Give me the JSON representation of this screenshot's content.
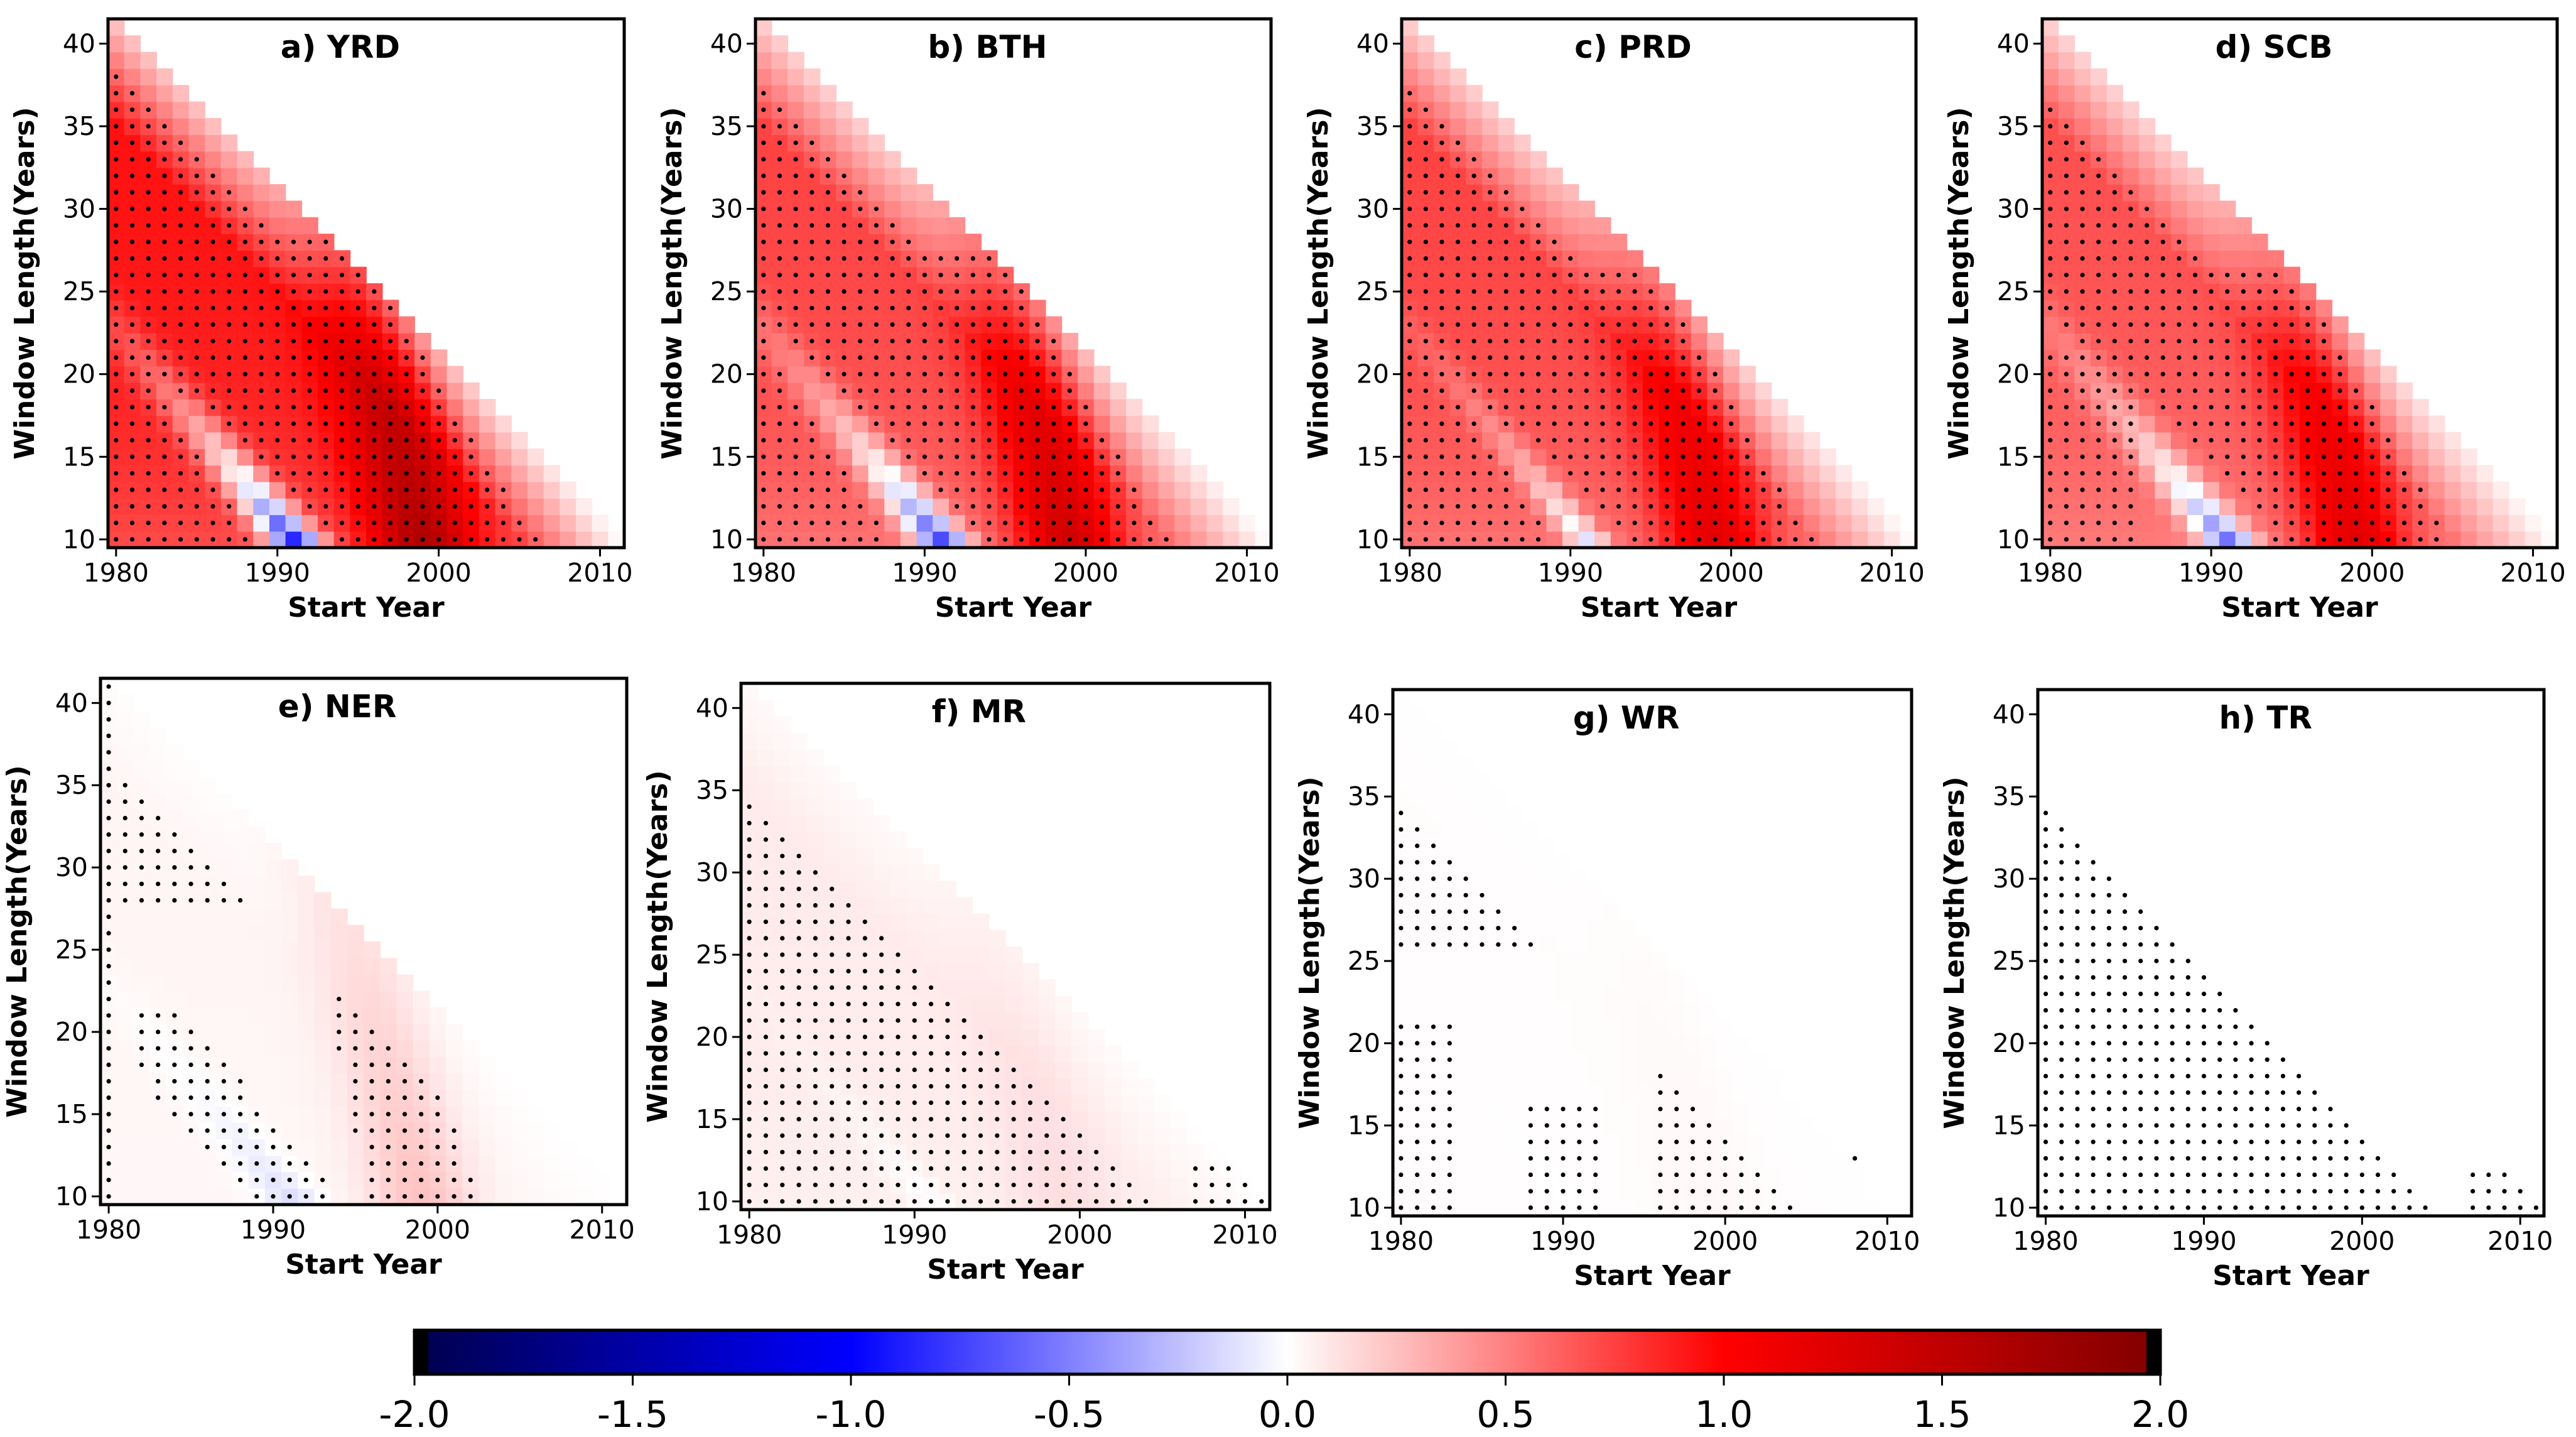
{
  "chart_data": {
    "type": "heatmap",
    "description_axes": {
      "xlabel": "Start Year",
      "ylabel": "Window Length(Years)",
      "x_range": [
        1980,
        2011
      ],
      "y_range": [
        10,
        41
      ],
      "x_ticks": [
        "1980",
        "1990",
        "2000",
        "2010"
      ],
      "y_ticks": [
        "10",
        "15",
        "20",
        "25",
        "30",
        "35",
        "40"
      ],
      "valid_region": "start_year + window_length <= 2021"
    },
    "panels": [
      {
        "id": "a",
        "title": "a) YRD",
        "peak": 1.85,
        "dip": -0.7,
        "dip_width": 1.6,
        "base": 0.95,
        "sig": "strong"
      },
      {
        "id": "b",
        "title": "b) BTH",
        "peak": 1.55,
        "dip": -0.6,
        "dip_width": 1.6,
        "base": 0.75,
        "sig": "strong"
      },
      {
        "id": "c",
        "title": "c) PRD",
        "peak": 1.4,
        "dip": 0.0,
        "dip_width": 1.2,
        "base": 0.75,
        "sig": "strong"
      },
      {
        "id": "d",
        "title": "d) SCB",
        "peak": 1.4,
        "dip": -0.45,
        "dip_width": 1.6,
        "base": 0.7,
        "sig": "partial"
      },
      {
        "id": "e",
        "title": "e) NER",
        "peak": 0.25,
        "dip": -0.12,
        "dip_width": 1.6,
        "base": 0.04,
        "sig": "moderate"
      },
      {
        "id": "f",
        "title": "f) MR",
        "peak": 0.15,
        "dip": 0.0,
        "dip_width": 1.2,
        "base": 0.08,
        "sig": "full"
      },
      {
        "id": "g",
        "title": "g) WR",
        "peak": 0.03,
        "dip": 0.0,
        "dip_width": 1.2,
        "base": 0.01,
        "sig": "sparse"
      },
      {
        "id": "h",
        "title": "h) TR",
        "peak": 0.0,
        "dip": 0.0,
        "dip_width": 1.2,
        "base": 0.0,
        "sig": "full"
      }
    ],
    "colorbar": {
      "colormap": "seismic",
      "vmin": -2.0,
      "vmax": 2.0,
      "ticks": [
        "-2.0",
        "-1.5",
        "-1.0",
        "-0.5",
        "0.0",
        "0.5",
        "1.0",
        "1.5",
        "2.0"
      ],
      "colors": {
        "neg_end": "#00004c",
        "neg_mid": "#0000ff",
        "center": "#ffffff",
        "pos_mid": "#ff0000",
        "pos_end": "#800000"
      }
    }
  }
}
